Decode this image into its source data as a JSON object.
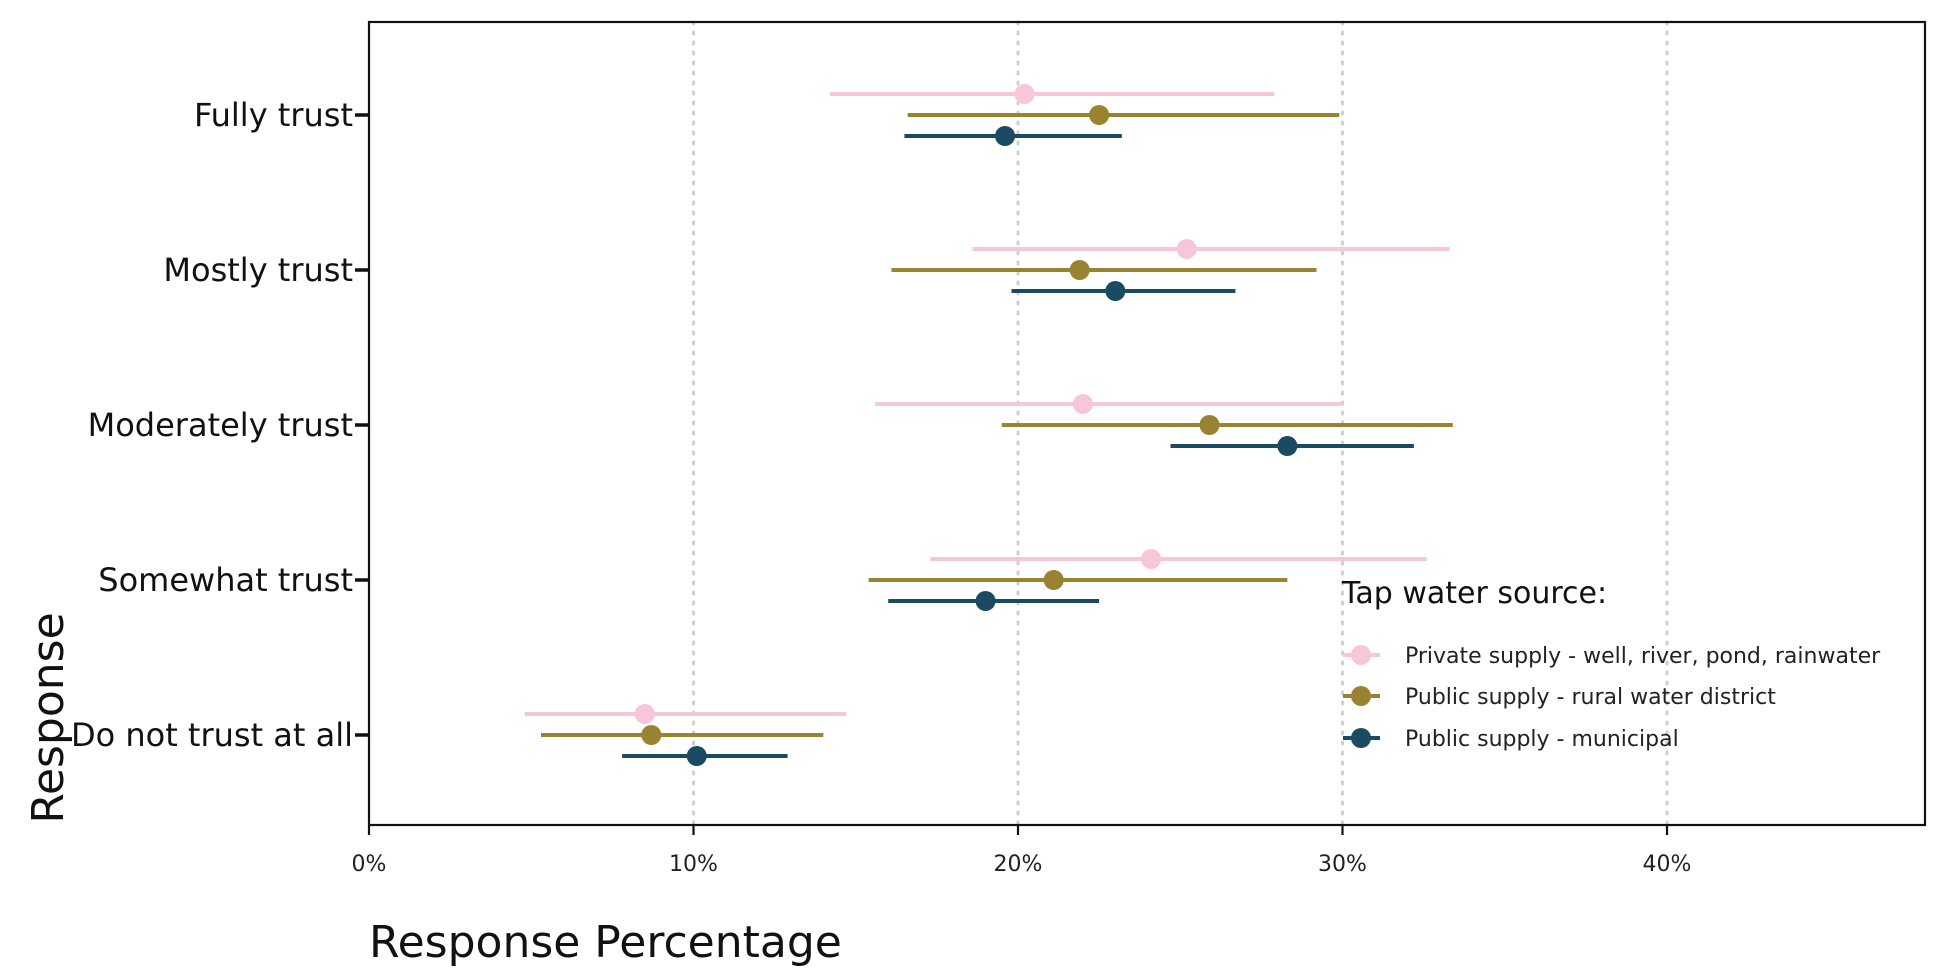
{
  "chart_data": {
    "type": "errorbar-dot",
    "xlabel": "Response Percentage",
    "ylabel": "Response",
    "xlim": [
      0,
      48
    ],
    "xticks": [
      0,
      10,
      20,
      30,
      40
    ],
    "xtick_labels": [
      "0%",
      "10%",
      "20%",
      "30%",
      "40%"
    ],
    "grid": "vertical dotted at ticks",
    "categories": [
      "Fully trust",
      "Mostly trust",
      "Moderately trust",
      "Somewhat trust",
      "Do not trust at all"
    ],
    "legend": {
      "title": "Tap water source:",
      "position": "bottom-right inside"
    },
    "series": [
      {
        "name": "Private supply - well, river, pond, rainwater",
        "color": "#F7C6DA",
        "values": [
          20.2,
          25.2,
          22.0,
          24.1,
          8.5
        ],
        "lower": [
          14.2,
          18.6,
          15.6,
          17.3,
          4.8
        ],
        "upper": [
          27.9,
          33.3,
          30.0,
          32.6,
          14.7
        ]
      },
      {
        "name": "Public supply - rural water district",
        "color": "#9A8330",
        "values": [
          22.5,
          21.9,
          25.9,
          21.1,
          8.7
        ],
        "lower": [
          16.6,
          16.1,
          19.5,
          15.4,
          5.3
        ],
        "upper": [
          29.9,
          29.2,
          33.4,
          28.3,
          14.0
        ]
      },
      {
        "name": "Public supply - municipal",
        "color": "#1B4B62",
        "values": [
          19.6,
          23.0,
          28.3,
          19.0,
          10.1
        ],
        "lower": [
          16.5,
          19.8,
          24.7,
          16.0,
          7.8
        ],
        "upper": [
          23.2,
          26.7,
          32.2,
          22.5,
          12.9
        ]
      }
    ]
  }
}
